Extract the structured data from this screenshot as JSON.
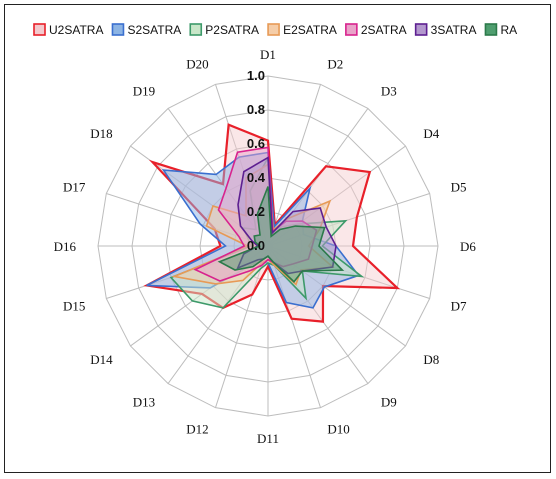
{
  "chart_data": {
    "type": "radar",
    "categories": [
      "D1",
      "D2",
      "D3",
      "D4",
      "D5",
      "D6",
      "D7",
      "D8",
      "D9",
      "D10",
      "D11",
      "D12",
      "D13",
      "D14",
      "D15",
      "D16",
      "D17",
      "D18",
      "D19",
      "D20"
    ],
    "rlim": [
      0,
      1.0
    ],
    "rticks": [
      "0.0",
      "0.2",
      "0.4",
      "0.6",
      "0.8",
      "1.0"
    ],
    "grid": true,
    "legend": "top",
    "series": [
      {
        "name": "U2SATRA",
        "stroke": "#e8202a",
        "fill": "#f3c9cd",
        "values": [
          0.62,
          0.13,
          0.58,
          0.74,
          0.55,
          0.5,
          0.8,
          0.4,
          0.55,
          0.45,
          0.12,
          0.3,
          0.45,
          0.48,
          0.75,
          0.28,
          0.33,
          0.84,
          0.45,
          0.75
        ]
      },
      {
        "name": "S2SATRA",
        "stroke": "#3a6fcf",
        "fill": "#8cb4e4",
        "values": [
          0.55,
          0.12,
          0.42,
          0.25,
          0.22,
          0.4,
          0.56,
          0.41,
          0.45,
          0.35,
          0.1,
          0.1,
          0.12,
          0.42,
          0.75,
          0.25,
          0.42,
          0.76,
          0.52,
          0.55
        ]
      },
      {
        "name": "P2SATRA",
        "stroke": "#3d9a6a",
        "fill": "#c9e7c9",
        "values": [
          0.52,
          0.08,
          0.14,
          0.22,
          0.48,
          0.32,
          0.58,
          0.25,
          0.38,
          0.12,
          0.1,
          0.14,
          0.45,
          0.55,
          0.6,
          0.1,
          0.12,
          0.18,
          0.12,
          0.34
        ]
      },
      {
        "name": "E2SATRA",
        "stroke": "#e79a56",
        "fill": "#f5cda8",
        "values": [
          0.48,
          0.1,
          0.2,
          0.45,
          0.32,
          0.24,
          0.4,
          0.24,
          0.28,
          0.12,
          0.08,
          0.1,
          0.25,
          0.38,
          0.58,
          0.12,
          0.38,
          0.4,
          0.22,
          0.42
        ]
      },
      {
        "name": "2SATRA",
        "stroke": "#d8238e",
        "fill": "#e9a3c9",
        "values": [
          0.58,
          0.09,
          0.18,
          0.25,
          0.3,
          0.26,
          0.25,
          0.18,
          0.15,
          0.1,
          0.08,
          0.12,
          0.18,
          0.35,
          0.45,
          0.14,
          0.18,
          0.36,
          0.42,
          0.58
        ]
      },
      {
        "name": "3SATRA",
        "stroke": "#5d1f91",
        "fill": "#b398ce",
        "values": [
          0.52,
          0.08,
          0.25,
          0.38,
          0.36,
          0.4,
          0.4,
          0.25,
          0.2,
          0.1,
          0.06,
          0.08,
          0.1,
          0.22,
          0.15,
          0.06,
          0.1,
          0.2,
          0.3,
          0.46
        ]
      },
      {
        "name": "RA",
        "stroke": "#2c7a4a",
        "fill": "#4f9e6f",
        "values": [
          0.35,
          0.06,
          0.12,
          0.2,
          0.35,
          0.3,
          0.46,
          0.25,
          0.26,
          0.1,
          0.06,
          0.08,
          0.15,
          0.24,
          0.3,
          0.05,
          0.08,
          0.1,
          0.08,
          0.2
        ]
      }
    ]
  }
}
